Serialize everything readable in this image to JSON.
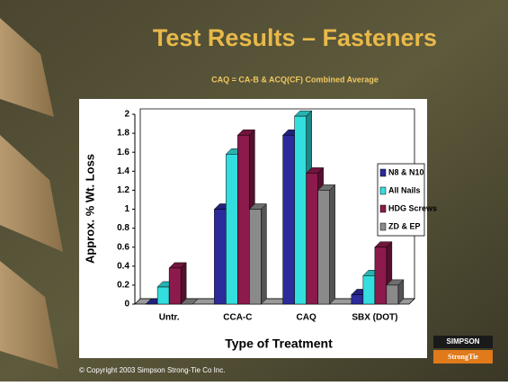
{
  "chart_data": {
    "type": "bar",
    "title": "Test Results – Fasteners",
    "subtitle": "CAQ = CA-B & ACQ(CF) Combined Average",
    "x_label": "Type of Treatment",
    "y_label": "Approx. % Wt. Loss",
    "categories": [
      "Untr.",
      "CCA-C",
      "CAQ",
      "SBX (DOT)"
    ],
    "series": [
      {
        "name": "N8 & N10",
        "color": "#2b2b9c",
        "values": [
          0,
          1.0,
          1.78,
          0.1
        ]
      },
      {
        "name": "All Nails",
        "color": "#33dede",
        "values": [
          0.18,
          1.58,
          1.98,
          0.3
        ]
      },
      {
        "name": "HDG Screws",
        "color": "#8c1a4c",
        "values": [
          0.38,
          1.78,
          1.38,
          0.6
        ]
      },
      {
        "name": "ZD & EP",
        "color": "#8a8a8a",
        "values": [
          0,
          1.0,
          1.2,
          0.2
        ]
      }
    ],
    "ylim": [
      0,
      2
    ],
    "yticks": [
      0,
      0.2,
      0.4,
      0.6,
      0.8,
      1,
      1.2,
      1.4,
      1.6,
      1.8,
      2
    ],
    "legend": "right"
  },
  "footer": {
    "copyright": "© Copyright 2003 Simpson Strong-Tie Co Inc.",
    "logo_top": "SIMPSON",
    "logo_bottom": "StrongTie"
  }
}
